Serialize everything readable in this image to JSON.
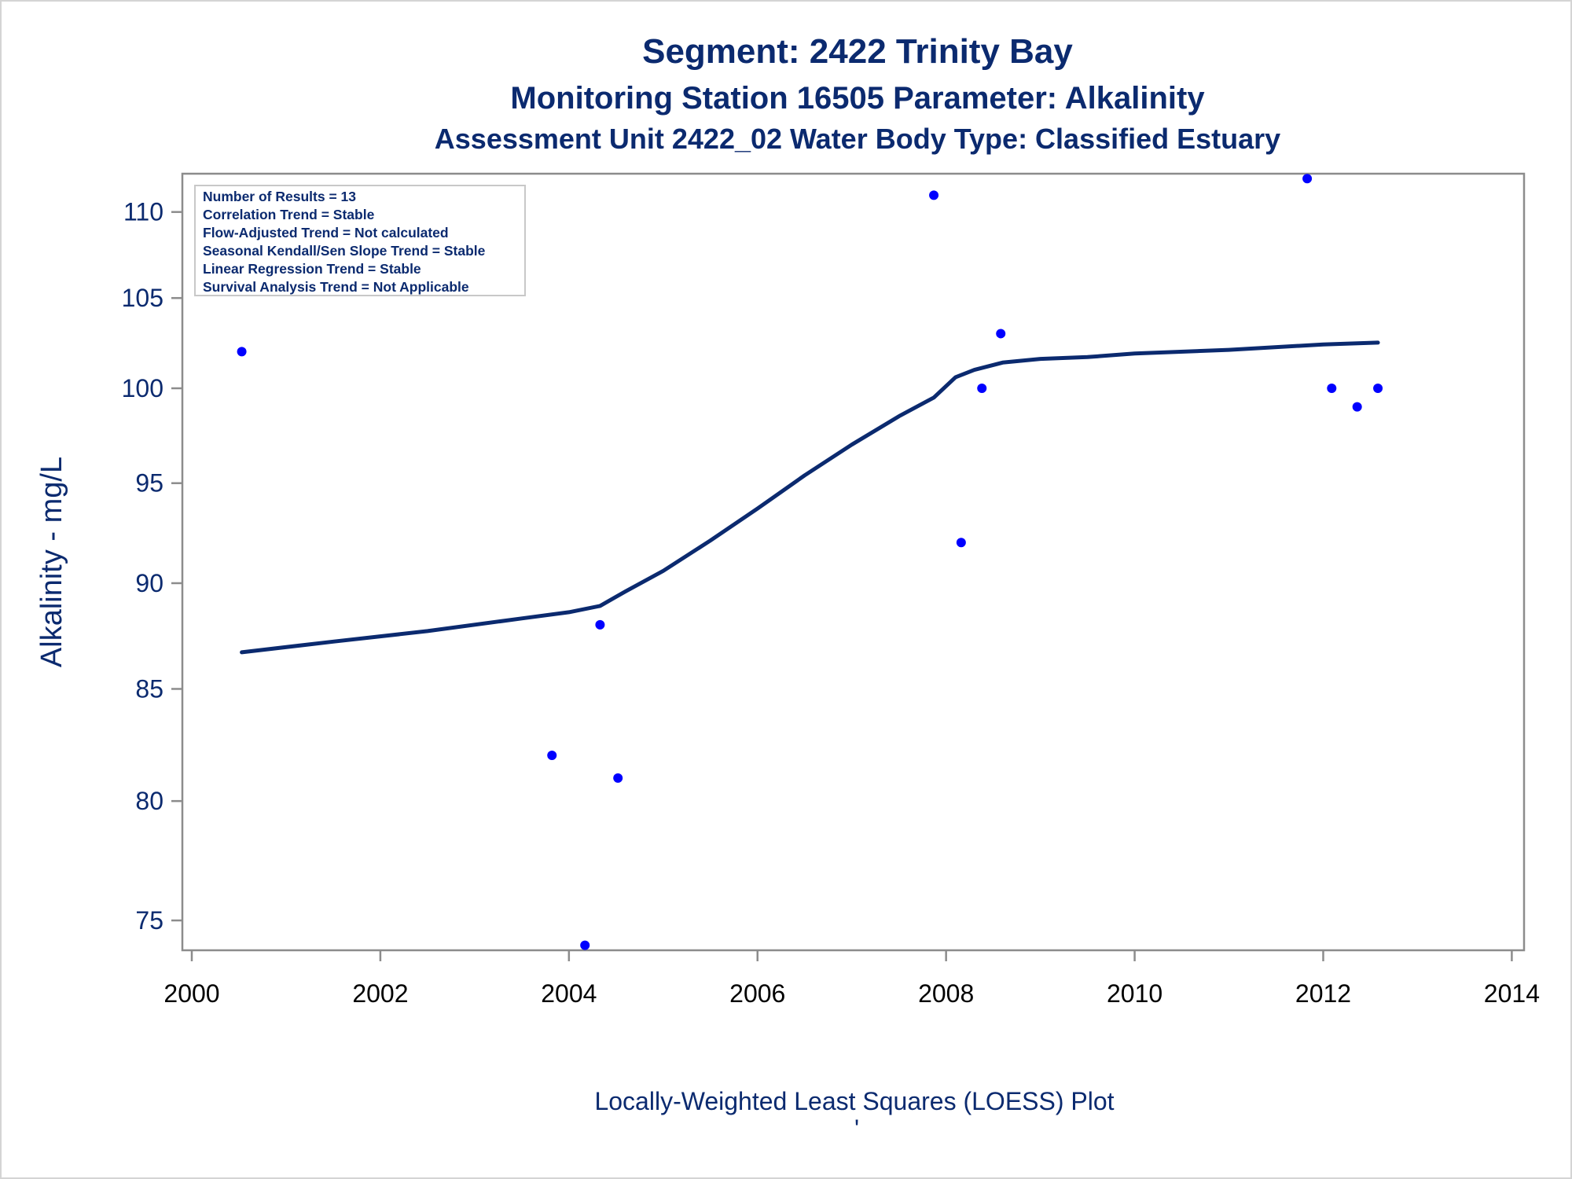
{
  "titles": {
    "line1": "Segment: 2422  Trinity Bay",
    "line2": "Monitoring Station 16505 Parameter: Alkalinity",
    "line3": "Assessment Unit 2422_02   Water Body Type: Classified Estuary"
  },
  "footnote": "Locally-Weighted Least Squares (LOESS) Plot",
  "footnote_mark": "'",
  "stats_box": [
    "Number of Results = 13",
    "Correlation Trend = Stable",
    "Flow-Adjusted Trend = Not calculated",
    "Seasonal Kendall/Sen Slope Trend = Stable",
    "Linear Regression Trend = Stable",
    "Survival Analysis Trend = Not Applicable"
  ],
  "colors": {
    "title": "#0b2a6f",
    "points": "#0000ff",
    "loess_line": "#0b2a6f",
    "axes": "#8c8c8c"
  },
  "chart_data": {
    "type": "scatter",
    "title": "Segment: 2422  Trinity Bay",
    "xlabel": "",
    "ylabel": "Alkalinity - mg/L",
    "y_scale": "log",
    "xlim": [
      1999.9,
      2014.13
    ],
    "ylim": [
      73.8,
      112.3
    ],
    "x_ticks": [
      2000,
      2002,
      2004,
      2006,
      2008,
      2010,
      2012,
      2014
    ],
    "y_ticks": [
      75,
      80,
      85,
      90,
      95,
      100,
      105,
      110
    ],
    "grid": false,
    "legend": "none",
    "series": [
      {
        "type": "scatter",
        "points": [
          {
            "x": 2000.53,
            "y": 102
          },
          {
            "x": 2003.82,
            "y": 82
          },
          {
            "x": 2004.17,
            "y": 74
          },
          {
            "x": 2004.33,
            "y": 88
          },
          {
            "x": 2004.52,
            "y": 81
          },
          {
            "x": 2007.87,
            "y": 111
          },
          {
            "x": 2008.16,
            "y": 92
          },
          {
            "x": 2008.38,
            "y": 100
          },
          {
            "x": 2008.58,
            "y": 103
          },
          {
            "x": 2011.83,
            "y": 112
          },
          {
            "x": 2012.09,
            "y": 100
          },
          {
            "x": 2012.36,
            "y": 99
          },
          {
            "x": 2012.58,
            "y": 100
          }
        ]
      },
      {
        "type": "line",
        "points": [
          {
            "x": 2000.53,
            "y": 86.7
          },
          {
            "x": 2001.5,
            "y": 87.2
          },
          {
            "x": 2002.5,
            "y": 87.7
          },
          {
            "x": 2003.5,
            "y": 88.3
          },
          {
            "x": 2004.0,
            "y": 88.6
          },
          {
            "x": 2004.33,
            "y": 88.9
          },
          {
            "x": 2004.6,
            "y": 89.6
          },
          {
            "x": 2005.0,
            "y": 90.6
          },
          {
            "x": 2005.5,
            "y": 92.1
          },
          {
            "x": 2006.0,
            "y": 93.7
          },
          {
            "x": 2006.5,
            "y": 95.4
          },
          {
            "x": 2007.0,
            "y": 97.0
          },
          {
            "x": 2007.5,
            "y": 98.5
          },
          {
            "x": 2007.87,
            "y": 99.5
          },
          {
            "x": 2008.1,
            "y": 100.6
          },
          {
            "x": 2008.3,
            "y": 101.0
          },
          {
            "x": 2008.6,
            "y": 101.4
          },
          {
            "x": 2009.0,
            "y": 101.6
          },
          {
            "x": 2009.5,
            "y": 101.7
          },
          {
            "x": 2010.0,
            "y": 101.9
          },
          {
            "x": 2011.0,
            "y": 102.1
          },
          {
            "x": 2012.0,
            "y": 102.4
          },
          {
            "x": 2012.58,
            "y": 102.5
          }
        ]
      }
    ]
  }
}
